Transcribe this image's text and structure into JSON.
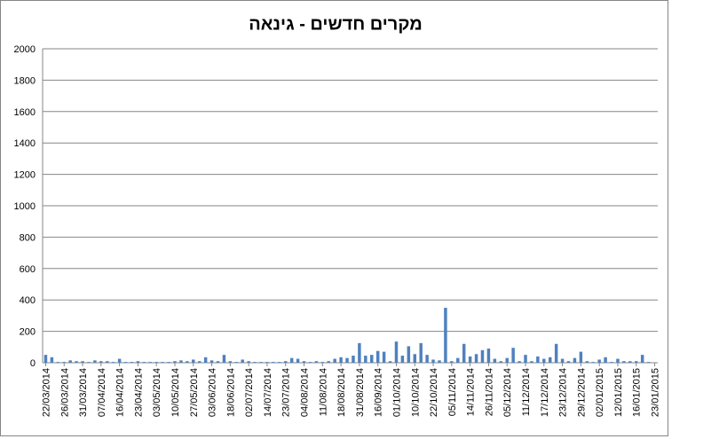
{
  "chart_data": {
    "type": "bar",
    "title": "מקרים חדשים - גינאה",
    "categories": [
      "22/03/2014",
      null,
      null,
      "26/03/2014",
      null,
      null,
      "31/03/2014",
      null,
      null,
      "07/04/2014",
      null,
      null,
      "16/04/2014",
      null,
      null,
      "23/04/2014",
      null,
      null,
      "03/05/2014",
      null,
      null,
      "10/05/2014",
      null,
      null,
      "27/05/2014",
      null,
      null,
      "03/06/2014",
      null,
      null,
      "18/06/2014",
      null,
      null,
      "02/07/2014",
      null,
      null,
      "14/07/2014",
      null,
      null,
      "23/07/2014",
      null,
      null,
      "04/08/2014",
      null,
      null,
      "11/08/2014",
      null,
      null,
      "18/08/2014",
      null,
      null,
      "31/08/2014",
      null,
      null,
      "16/09/2014",
      null,
      null,
      "01/10/2014",
      null,
      null,
      "10/10/2014",
      null,
      null,
      "22/10/2014",
      null,
      null,
      "05/11/2014",
      null,
      null,
      "14/11/2014",
      null,
      null,
      "26/11/2014",
      null,
      null,
      "05/12/2014",
      null,
      null,
      "11/12/2014",
      null,
      null,
      "17/12/2014",
      null,
      null,
      "23/12/2014",
      null,
      null,
      "29/12/2014",
      null,
      null,
      "02/01/2015",
      null,
      null,
      "12/01/2015",
      null,
      null,
      "16/01/2015",
      null,
      null,
      "23/01/2015"
    ],
    "values": [
      50,
      35,
      5,
      5,
      15,
      10,
      10,
      5,
      15,
      10,
      10,
      5,
      25,
      5,
      5,
      10,
      5,
      5,
      5,
      5,
      5,
      10,
      15,
      10,
      20,
      10,
      35,
      15,
      10,
      50,
      10,
      5,
      20,
      10,
      5,
      5,
      5,
      5,
      5,
      10,
      30,
      25,
      10,
      5,
      10,
      5,
      10,
      25,
      35,
      30,
      45,
      125,
      45,
      50,
      75,
      70,
      10,
      135,
      45,
      105,
      55,
      125,
      50,
      20,
      15,
      350,
      10,
      30,
      120,
      40,
      55,
      80,
      90,
      25,
      10,
      30,
      95,
      10,
      50,
      10,
      40,
      25,
      35,
      120,
      25,
      10,
      30,
      70,
      10,
      5,
      20,
      35,
      5,
      25,
      10,
      10,
      10,
      50,
      5,
      0
    ],
    "color": "#4f81bd",
    "ylim": [
      0,
      2000
    ],
    "yticks": [
      0,
      200,
      400,
      600,
      800,
      1000,
      1200,
      1400,
      1600,
      1800,
      2000
    ],
    "grid": true
  }
}
